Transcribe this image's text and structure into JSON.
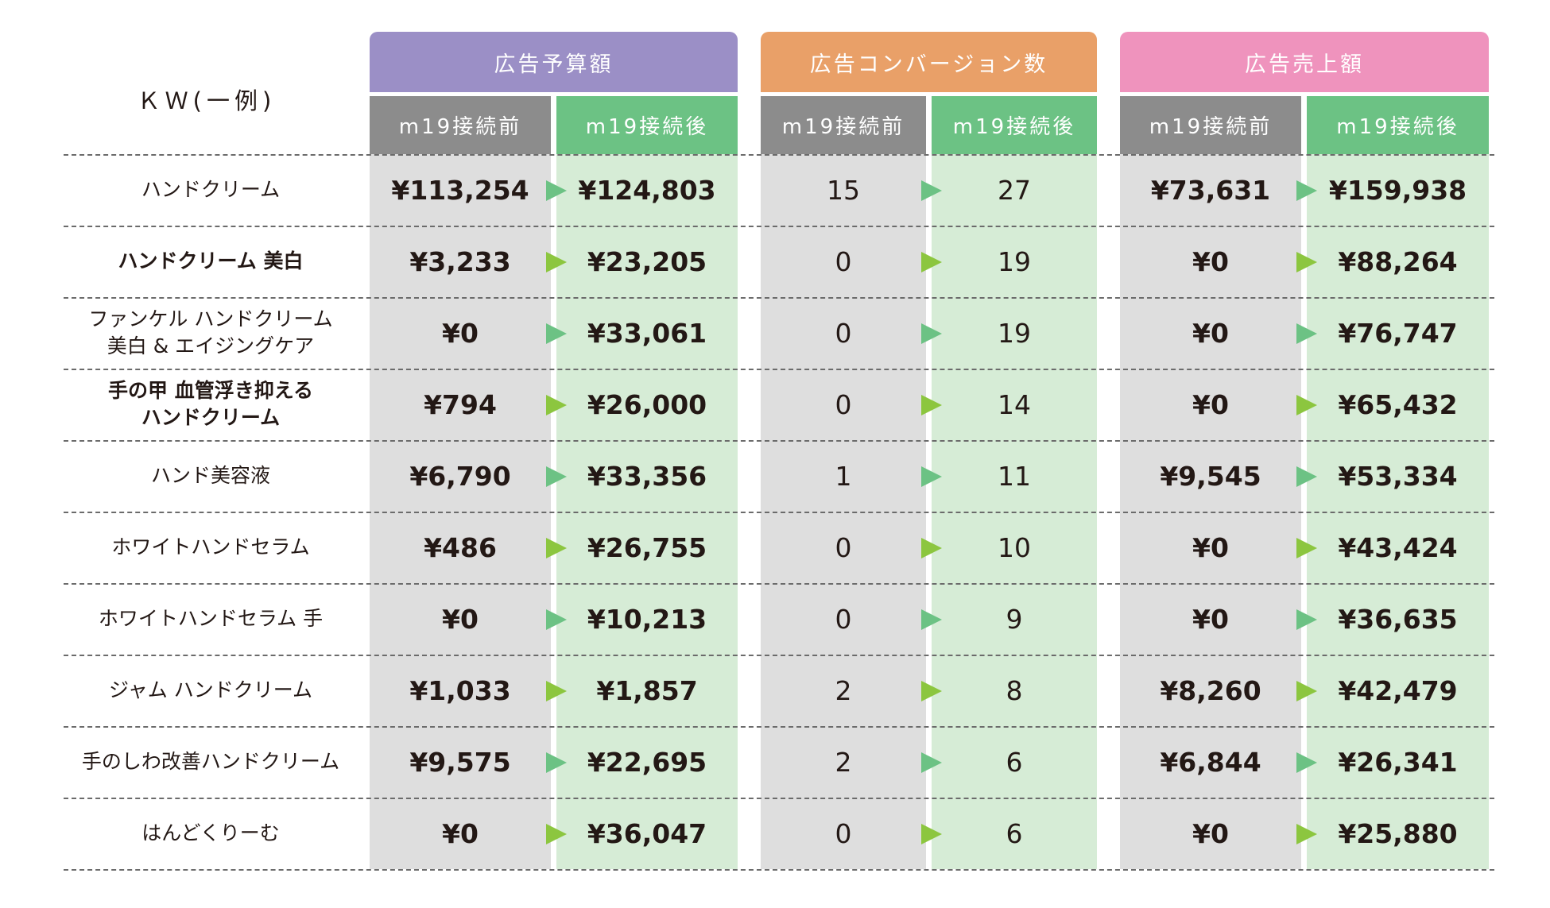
{
  "header": {
    "kw_label": "ＫＷ(一例)",
    "groups": [
      {
        "label": "広告予算額",
        "color": "#9b8fc6",
        "before": "m19接続前",
        "after": "m19接続後"
      },
      {
        "label": "広告コンバージョン数",
        "color": "#e9a068",
        "before": "m19接続前",
        "after": "m19接続後"
      },
      {
        "label": "広告売上額",
        "color": "#ef93bd",
        "before": "m19接続前",
        "after": "m19接続後"
      }
    ]
  },
  "colors": {
    "before_header": "#8c8c8c",
    "after_header": "#6cc284",
    "before_bg": "#dedede",
    "after_bg": "#d6ecd6",
    "arrow_green": "#6cc284",
    "arrow_lime": "#8cc63f"
  },
  "rows": [
    {
      "kw": "ハンドクリーム",
      "budget_before": "¥113,254",
      "budget_after": "¥124,803",
      "cv_before": "15",
      "cv_after": "27",
      "sales_before": "¥73,631",
      "sales_after": "¥159,938"
    },
    {
      "kw": "ハンドクリーム 美白",
      "budget_before": "¥3,233",
      "budget_after": "¥23,205",
      "cv_before": "0",
      "cv_after": "19",
      "sales_before": "¥0",
      "sales_after": "¥88,264"
    },
    {
      "kw": "ファンケル ハンドクリーム\n美白 & エイジングケア",
      "budget_before": "¥0",
      "budget_after": "¥33,061",
      "cv_before": "0",
      "cv_after": "19",
      "sales_before": "¥0",
      "sales_after": "¥76,747"
    },
    {
      "kw": "手の甲 血管浮き抑える\nハンドクリーム",
      "budget_before": "¥794",
      "budget_after": "¥26,000",
      "cv_before": "0",
      "cv_after": "14",
      "sales_before": "¥0",
      "sales_after": "¥65,432"
    },
    {
      "kw": "ハンド美容液",
      "budget_before": "¥6,790",
      "budget_after": "¥33,356",
      "cv_before": "1",
      "cv_after": "11",
      "sales_before": "¥9,545",
      "sales_after": "¥53,334"
    },
    {
      "kw": "ホワイトハンドセラム",
      "budget_before": "¥486",
      "budget_after": "¥26,755",
      "cv_before": "0",
      "cv_after": "10",
      "sales_before": "¥0",
      "sales_after": "¥43,424"
    },
    {
      "kw": "ホワイトハンドセラム 手",
      "budget_before": "¥0",
      "budget_after": "¥10,213",
      "cv_before": "0",
      "cv_after": "9",
      "sales_before": "¥0",
      "sales_after": "¥36,635"
    },
    {
      "kw": "ジャム ハンドクリーム",
      "budget_before": "¥1,033",
      "budget_after": "¥1,857",
      "cv_before": "2",
      "cv_after": "8",
      "sales_before": "¥8,260",
      "sales_after": "¥42,479"
    },
    {
      "kw": "手のしわ改善ハンドクリーム",
      "budget_before": "¥9,575",
      "budget_after": "¥22,695",
      "cv_before": "2",
      "cv_after": "6",
      "sales_before": "¥6,844",
      "sales_after": "¥26,341"
    },
    {
      "kw": "はんどくりーむ",
      "budget_before": "¥0",
      "budget_after": "¥36,047",
      "cv_before": "0",
      "cv_after": "6",
      "sales_before": "¥0",
      "sales_after": "¥25,880"
    }
  ]
}
